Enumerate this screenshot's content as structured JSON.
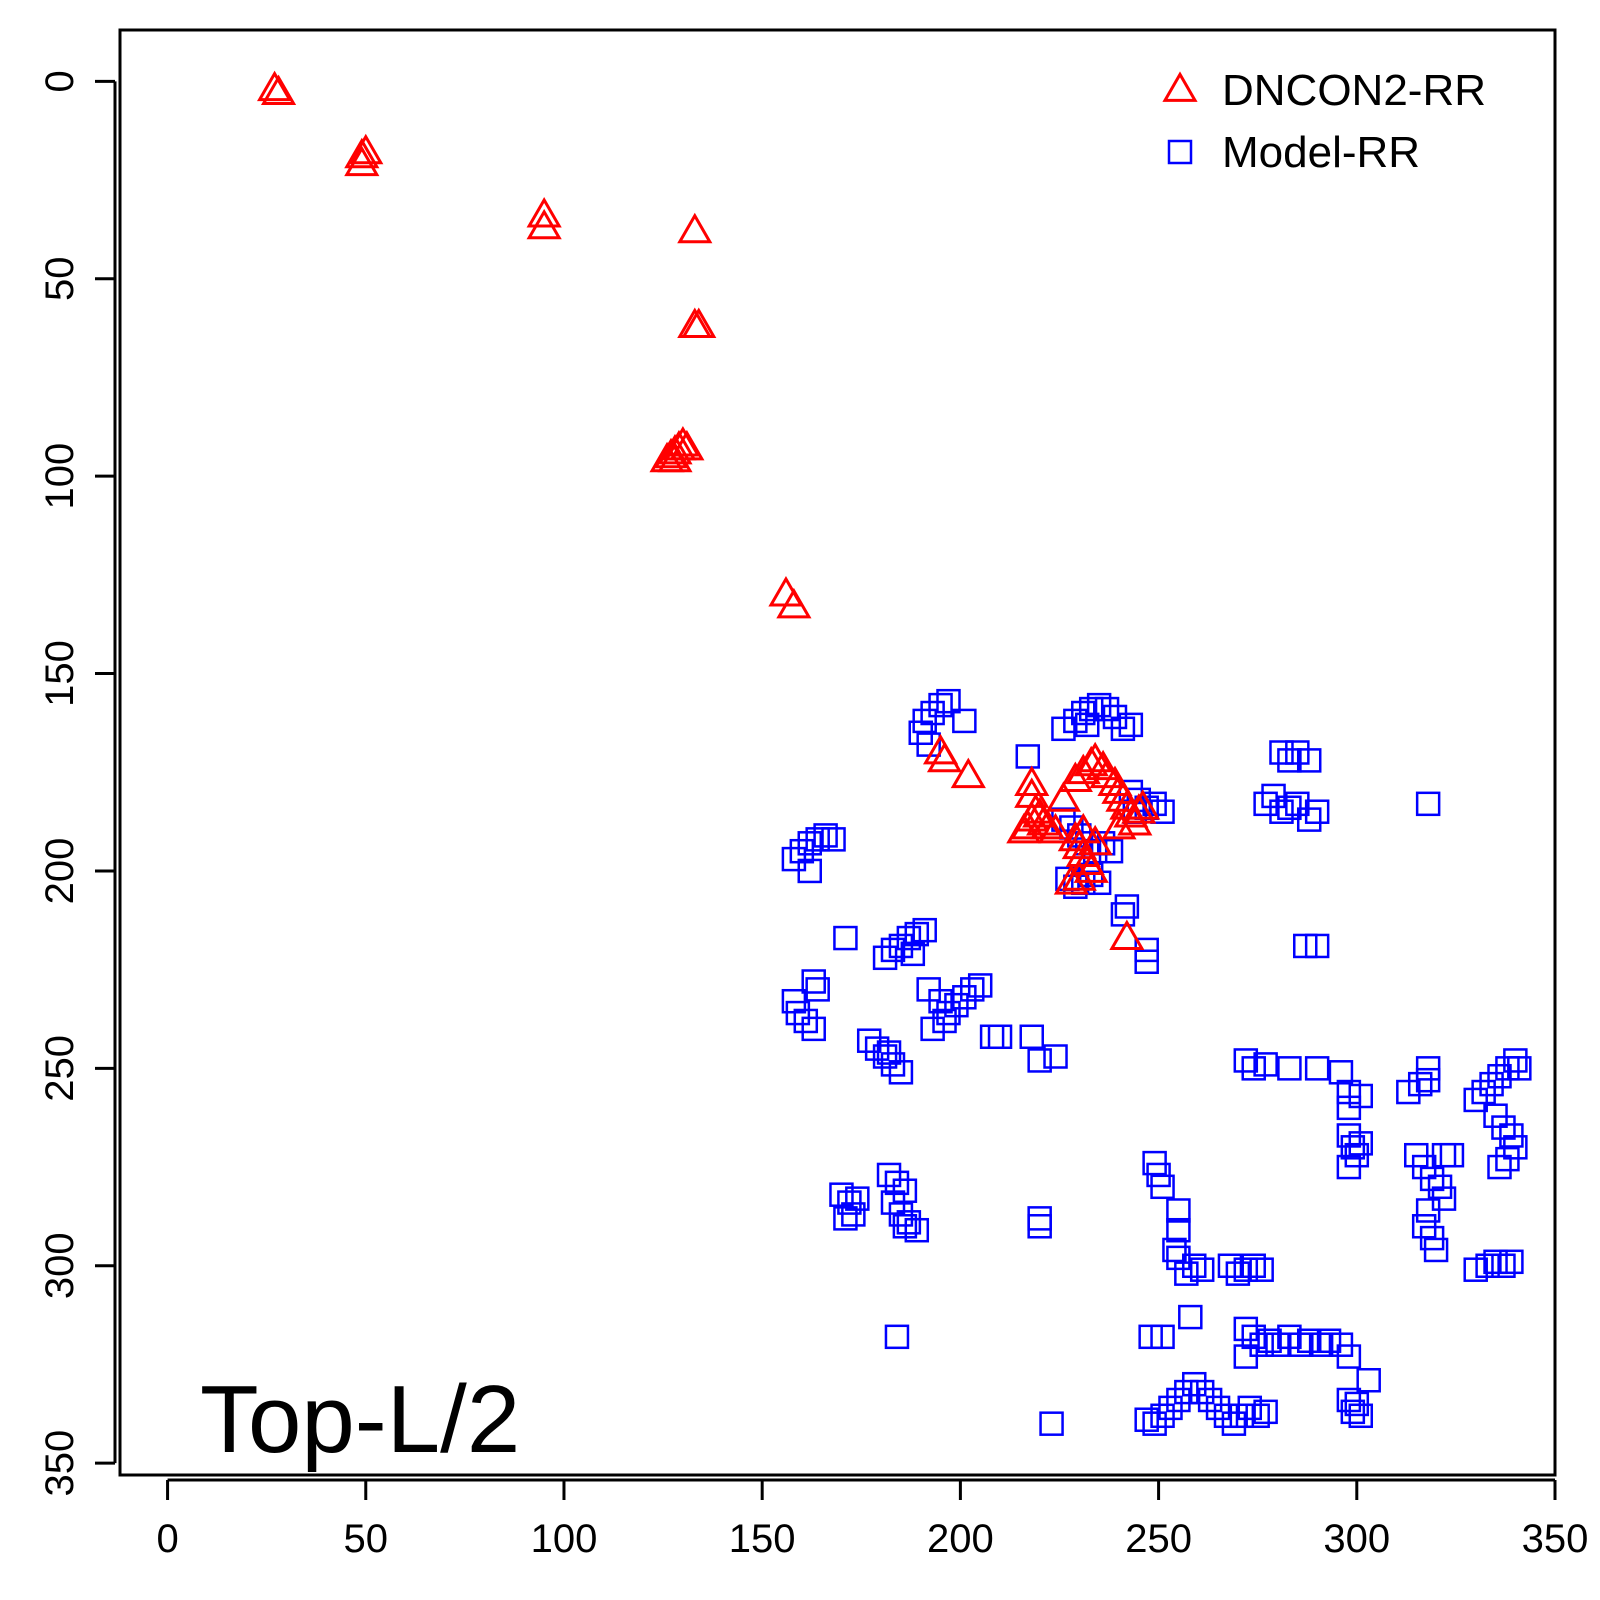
{
  "chart_data": {
    "type": "scatter",
    "title": "",
    "label": "Top-L/2",
    "xlabel": "",
    "ylabel": "",
    "xlim": [
      -12,
      350
    ],
    "ylim": [
      353,
      -13
    ],
    "y_reversed": true,
    "x_ticks": [
      "0",
      "50",
      "100",
      "150",
      "200",
      "250",
      "300",
      "350"
    ],
    "y_ticks": [
      "0",
      "50",
      "100",
      "150",
      "200",
      "250",
      "300",
      "350"
    ],
    "legend": {
      "position": "top-right",
      "entries": [
        "DNCON2-RR",
        "Model-RR"
      ]
    },
    "series": [
      {
        "name": "DNCON2-RR",
        "marker": "triangle",
        "color": "#ff0000",
        "points": [
          [
            27,
            2
          ],
          [
            28,
            3
          ],
          [
            49,
            19
          ],
          [
            50,
            18
          ],
          [
            49,
            21
          ],
          [
            95,
            34
          ],
          [
            95,
            37
          ],
          [
            133,
            38
          ],
          [
            134,
            62
          ],
          [
            133,
            62
          ],
          [
            127,
            95
          ],
          [
            128,
            94
          ],
          [
            129,
            93
          ],
          [
            130,
            92
          ],
          [
            131,
            93
          ],
          [
            128,
            96
          ],
          [
            126,
            96
          ],
          [
            156,
            130
          ],
          [
            158,
            133
          ],
          [
            195,
            170
          ],
          [
            196,
            172
          ],
          [
            202,
            176
          ],
          [
            217,
            189
          ],
          [
            218,
            187
          ],
          [
            219,
            185
          ],
          [
            220,
            186
          ],
          [
            221,
            188
          ],
          [
            222,
            189
          ],
          [
            224,
            190
          ],
          [
            216,
            190
          ],
          [
            218,
            181
          ],
          [
            218,
            178
          ],
          [
            226,
            182
          ],
          [
            229,
            177
          ],
          [
            231,
            175
          ],
          [
            233,
            173
          ],
          [
            234,
            172
          ],
          [
            236,
            174
          ],
          [
            237,
            176
          ],
          [
            239,
            178
          ],
          [
            240,
            180
          ],
          [
            241,
            182
          ],
          [
            242,
            184
          ],
          [
            243,
            186
          ],
          [
            245,
            185
          ],
          [
            246,
            184
          ],
          [
            244,
            188
          ],
          [
            240,
            189
          ],
          [
            229,
            192
          ],
          [
            230,
            194
          ],
          [
            231,
            196
          ],
          [
            232,
            198
          ],
          [
            233,
            200
          ],
          [
            230,
            202
          ],
          [
            228,
            203
          ],
          [
            231,
            190
          ],
          [
            234,
            193
          ],
          [
            242,
            217
          ]
        ]
      },
      {
        "name": "Model-RR",
        "marker": "square",
        "color": "#0000ff",
        "points": [
          [
            190,
            165
          ],
          [
            191,
            162
          ],
          [
            193,
            160
          ],
          [
            195,
            158
          ],
          [
            197,
            157
          ],
          [
            192,
            168
          ],
          [
            201,
            162
          ],
          [
            158,
            197
          ],
          [
            160,
            195
          ],
          [
            162,
            193
          ],
          [
            164,
            192
          ],
          [
            166,
            191
          ],
          [
            168,
            192
          ],
          [
            162,
            200
          ],
          [
            171,
            217
          ],
          [
            181,
            222
          ],
          [
            183,
            220
          ],
          [
            185,
            219
          ],
          [
            187,
            217
          ],
          [
            189,
            216
          ],
          [
            191,
            215
          ],
          [
            188,
            221
          ],
          [
            158,
            233
          ],
          [
            159,
            236
          ],
          [
            161,
            238
          ],
          [
            163,
            240
          ],
          [
            164,
            230
          ],
          [
            163,
            228
          ],
          [
            192,
            230
          ],
          [
            195,
            233
          ],
          [
            197,
            236
          ],
          [
            199,
            234
          ],
          [
            201,
            232
          ],
          [
            203,
            230
          ],
          [
            205,
            229
          ],
          [
            193,
            240
          ],
          [
            196,
            238
          ],
          [
            177,
            243
          ],
          [
            179,
            245
          ],
          [
            181,
            247
          ],
          [
            183,
            249
          ],
          [
            185,
            251
          ],
          [
            182,
            246
          ],
          [
            208,
            242
          ],
          [
            210,
            242
          ],
          [
            218,
            242
          ],
          [
            220,
            248
          ],
          [
            224,
            247
          ],
          [
            217,
            171
          ],
          [
            226,
            164
          ],
          [
            229,
            162
          ],
          [
            231,
            160
          ],
          [
            233,
            159
          ],
          [
            235,
            158
          ],
          [
            237,
            159
          ],
          [
            239,
            161
          ],
          [
            241,
            164
          ],
          [
            243,
            163
          ],
          [
            232,
            163
          ],
          [
            243,
            180
          ],
          [
            245,
            182
          ],
          [
            247,
            184
          ],
          [
            249,
            183
          ],
          [
            251,
            185
          ],
          [
            244,
            185
          ],
          [
            226,
            187
          ],
          [
            228,
            189
          ],
          [
            230,
            191
          ],
          [
            232,
            193
          ],
          [
            234,
            195
          ],
          [
            236,
            193
          ],
          [
            238,
            195
          ],
          [
            227,
            202
          ],
          [
            229,
            204
          ],
          [
            231,
            203
          ],
          [
            233,
            201
          ],
          [
            235,
            203
          ],
          [
            242,
            209
          ],
          [
            241,
            211
          ],
          [
            247,
            220
          ],
          [
            247,
            223
          ],
          [
            277,
            183
          ],
          [
            279,
            181
          ],
          [
            281,
            185
          ],
          [
            283,
            184
          ],
          [
            285,
            183
          ],
          [
            288,
            187
          ],
          [
            290,
            185
          ],
          [
            281,
            170
          ],
          [
            283,
            172
          ],
          [
            285,
            170
          ],
          [
            288,
            172
          ],
          [
            318,
            183
          ],
          [
            287,
            219
          ],
          [
            290,
            219
          ],
          [
            272,
            248
          ],
          [
            274,
            250
          ],
          [
            277,
            249
          ],
          [
            283,
            250
          ],
          [
            290,
            250
          ],
          [
            296,
            251
          ],
          [
            298,
            256
          ],
          [
            298,
            260
          ],
          [
            301,
            257
          ],
          [
            298,
            267
          ],
          [
            299,
            270
          ],
          [
            300,
            272
          ],
          [
            301,
            269
          ],
          [
            298,
            275
          ],
          [
            313,
            256
          ],
          [
            316,
            254
          ],
          [
            318,
            250
          ],
          [
            318,
            253
          ],
          [
            330,
            258
          ],
          [
            332,
            256
          ],
          [
            334,
            254
          ],
          [
            336,
            252
          ],
          [
            338,
            250
          ],
          [
            340,
            248
          ],
          [
            341,
            250
          ],
          [
            335,
            262
          ],
          [
            337,
            265
          ],
          [
            339,
            267
          ],
          [
            340,
            270
          ],
          [
            338,
            273
          ],
          [
            336,
            275
          ],
          [
            315,
            272
          ],
          [
            317,
            275
          ],
          [
            319,
            278
          ],
          [
            321,
            280
          ],
          [
            322,
            283
          ],
          [
            318,
            286
          ],
          [
            317,
            290
          ],
          [
            319,
            293
          ],
          [
            320,
            296
          ],
          [
            322,
            272
          ],
          [
            324,
            272
          ],
          [
            330,
            301
          ],
          [
            333,
            300
          ],
          [
            335,
            299
          ],
          [
            337,
            300
          ],
          [
            339,
            299
          ],
          [
            249,
            274
          ],
          [
            250,
            277
          ],
          [
            251,
            280
          ],
          [
            255,
            286
          ],
          [
            255,
            291
          ],
          [
            254,
            296
          ],
          [
            255,
            298
          ],
          [
            257,
            302
          ],
          [
            259,
            300
          ],
          [
            261,
            301
          ],
          [
            258,
            313
          ],
          [
            268,
            300
          ],
          [
            270,
            302
          ],
          [
            272,
            301
          ],
          [
            274,
            300
          ],
          [
            276,
            301
          ],
          [
            248,
            318
          ],
          [
            251,
            318
          ],
          [
            272,
            316
          ],
          [
            274,
            318
          ],
          [
            276,
            320
          ],
          [
            278,
            319
          ],
          [
            280,
            320
          ],
          [
            283,
            318
          ],
          [
            286,
            320
          ],
          [
            288,
            319
          ],
          [
            291,
            320
          ],
          [
            293,
            319
          ],
          [
            296,
            320
          ],
          [
            298,
            323
          ],
          [
            303,
            329
          ],
          [
            272,
            323
          ],
          [
            298,
            334
          ],
          [
            299,
            337
          ],
          [
            300,
            335
          ],
          [
            301,
            338
          ],
          [
            247,
            339
          ],
          [
            249,
            340
          ],
          [
            251,
            338
          ],
          [
            253,
            336
          ],
          [
            255,
            334
          ],
          [
            257,
            332
          ],
          [
            259,
            330
          ],
          [
            261,
            332
          ],
          [
            263,
            334
          ],
          [
            265,
            336
          ],
          [
            267,
            338
          ],
          [
            269,
            340
          ],
          [
            271,
            338
          ],
          [
            273,
            336
          ],
          [
            275,
            338
          ],
          [
            277,
            337
          ],
          [
            223,
            340
          ],
          [
            170,
            282
          ],
          [
            172,
            284
          ],
          [
            174,
            283
          ],
          [
            171,
            288
          ],
          [
            173,
            287
          ],
          [
            182,
            277
          ],
          [
            184,
            279
          ],
          [
            186,
            281
          ],
          [
            183,
            284
          ],
          [
            185,
            287
          ],
          [
            187,
            289
          ],
          [
            189,
            291
          ],
          [
            186,
            290
          ],
          [
            220,
            288
          ],
          [
            220,
            290
          ],
          [
            184,
            318
          ]
        ]
      }
    ]
  }
}
